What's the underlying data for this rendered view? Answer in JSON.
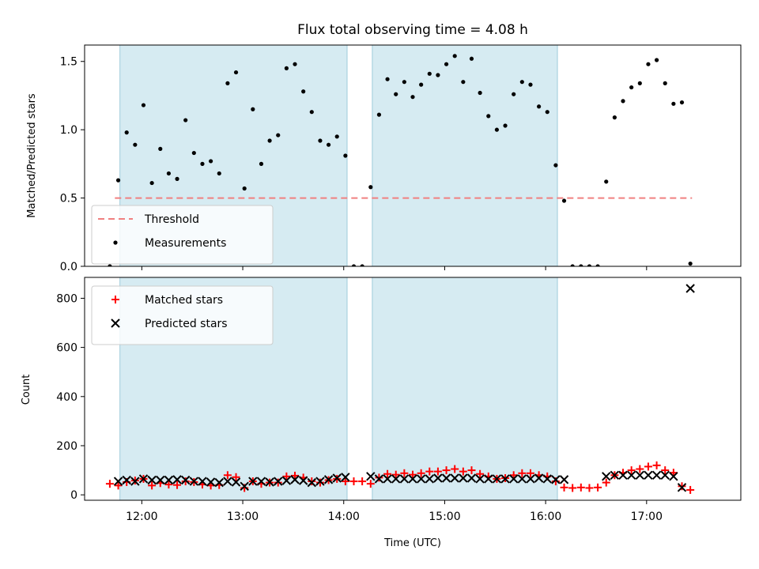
{
  "chart_data": [
    {
      "type": "scatter",
      "title": "Flux total observing time = 4.08 h",
      "ylabel": "Matched/Predicted stars",
      "xlabel": "",
      "xlim": [
        "11:26",
        "17:56"
      ],
      "ylim": [
        0,
        1.62
      ],
      "yticks": [
        0.0,
        0.5,
        1.0,
        1.5
      ],
      "ytick_labels": [
        "0.0",
        "0.5",
        "1.0",
        "1.5"
      ],
      "grid": false,
      "legend_position": "lower-left",
      "shaded_intervals": [
        [
          "11:47",
          "14:02"
        ],
        [
          "14:17",
          "16:07"
        ]
      ],
      "threshold": {
        "name": "Threshold",
        "value": 0.5,
        "x_start": "11:44",
        "x_end": "17:27",
        "color": "#f08080",
        "style": "dashed"
      },
      "series": [
        {
          "name": "Measurements",
          "color": "#000000",
          "marker": "dot",
          "x": [
            "11:41",
            "11:46",
            "11:51",
            "11:56",
            "12:01",
            "12:06",
            "12:11",
            "12:16",
            "12:21",
            "12:26",
            "12:31",
            "12:36",
            "12:41",
            "12:46",
            "12:51",
            "12:56",
            "13:01",
            "13:06",
            "13:11",
            "13:16",
            "13:21",
            "13:26",
            "13:31",
            "13:36",
            "13:41",
            "13:46",
            "13:51",
            "13:56",
            "14:01",
            "14:06",
            "14:11",
            "14:16",
            "14:21",
            "14:26",
            "14:31",
            "14:36",
            "14:41",
            "14:46",
            "14:51",
            "14:56",
            "15:01",
            "15:06",
            "15:11",
            "15:16",
            "15:21",
            "15:26",
            "15:31",
            "15:36",
            "15:41",
            "15:46",
            "15:51",
            "15:56",
            "16:01",
            "16:06",
            "16:11",
            "16:16",
            "16:21",
            "16:26",
            "16:31",
            "16:36",
            "16:41",
            "16:46",
            "16:51",
            "16:56",
            "17:01",
            "17:06",
            "17:11",
            "17:16",
            "17:21",
            "17:26"
          ],
          "y": [
            0.0,
            0.63,
            0.98,
            0.89,
            1.18,
            0.61,
            0.86,
            0.68,
            0.64,
            1.07,
            0.83,
            0.75,
            0.77,
            0.68,
            1.34,
            1.42,
            0.57,
            1.15,
            0.75,
            0.92,
            0.96,
            1.45,
            1.48,
            1.28,
            1.13,
            0.92,
            0.89,
            0.95,
            0.81,
            0.0,
            0.0,
            0.58,
            1.11,
            1.37,
            1.26,
            1.35,
            1.24,
            1.33,
            1.41,
            1.4,
            1.48,
            1.54,
            1.35,
            1.52,
            1.27,
            1.1,
            1.0,
            1.03,
            1.26,
            1.35,
            1.33,
            1.17,
            1.13,
            0.74,
            0.48,
            0.0,
            0.0,
            0.0,
            0.0,
            0.62,
            1.09,
            1.21,
            1.31,
            1.34,
            1.48,
            1.51,
            1.34,
            1.19,
            1.2,
            0.02
          ]
        }
      ]
    },
    {
      "type": "scatter",
      "title": "",
      "ylabel": "Count",
      "xlabel": "Time (UTC)",
      "xlim": [
        "11:26",
        "17:56"
      ],
      "ylim": [
        -22,
        885
      ],
      "yticks": [
        0,
        200,
        400,
        600,
        800
      ],
      "ytick_labels": [
        "0",
        "200",
        "400",
        "600",
        "800"
      ],
      "xtick_labels": [
        "12:00",
        "13:00",
        "14:00",
        "15:00",
        "16:00",
        "17:00"
      ],
      "grid": false,
      "legend_position": "top-left",
      "shaded_intervals": [
        [
          "11:47",
          "14:02"
        ],
        [
          "14:17",
          "16:07"
        ]
      ],
      "series": [
        {
          "name": "Matched stars",
          "color": "#ff0000",
          "marker": "plus",
          "x": [
            "11:41",
            "11:46",
            "11:51",
            "11:56",
            "12:01",
            "12:06",
            "12:11",
            "12:16",
            "12:21",
            "12:26",
            "12:31",
            "12:36",
            "12:41",
            "12:46",
            "12:51",
            "12:56",
            "13:01",
            "13:06",
            "13:11",
            "13:16",
            "13:21",
            "13:26",
            "13:31",
            "13:36",
            "13:41",
            "13:46",
            "13:51",
            "13:56",
            "14:01",
            "14:06",
            "14:11",
            "14:16",
            "14:21",
            "14:26",
            "14:31",
            "14:36",
            "14:41",
            "14:46",
            "14:51",
            "14:56",
            "15:01",
            "15:06",
            "15:11",
            "15:16",
            "15:21",
            "15:26",
            "15:31",
            "15:36",
            "15:41",
            "15:46",
            "15:51",
            "15:56",
            "16:01",
            "16:06",
            "16:11",
            "16:16",
            "16:21",
            "16:26",
            "16:31",
            "16:36",
            "16:41",
            "16:46",
            "16:51",
            "16:56",
            "17:01",
            "17:06",
            "17:11",
            "17:16",
            "17:21",
            "17:26"
          ],
          "y": [
            45,
            38,
            52,
            58,
            65,
            38,
            48,
            42,
            40,
            55,
            52,
            42,
            38,
            40,
            80,
            72,
            28,
            55,
            45,
            50,
            50,
            75,
            78,
            70,
            55,
            50,
            60,
            65,
            55,
            55,
            55,
            45,
            70,
            85,
            82,
            88,
            82,
            88,
            95,
            95,
            100,
            105,
            95,
            100,
            85,
            75,
            65,
            68,
            80,
            88,
            88,
            80,
            75,
            55,
            30,
            28,
            30,
            28,
            30,
            50,
            80,
            90,
            100,
            105,
            115,
            120,
            100,
            90,
            35,
            20
          ]
        },
        {
          "name": "Predicted stars",
          "color": "#000000",
          "marker": "x",
          "x": [
            "11:46",
            "11:51",
            "11:56",
            "12:01",
            "12:06",
            "12:11",
            "12:16",
            "12:21",
            "12:26",
            "12:31",
            "12:36",
            "12:41",
            "12:46",
            "12:51",
            "12:56",
            "13:01",
            "13:06",
            "13:11",
            "13:16",
            "13:21",
            "13:26",
            "13:31",
            "13:36",
            "13:41",
            "13:46",
            "13:51",
            "13:56",
            "14:01",
            "14:16",
            "14:21",
            "14:26",
            "14:31",
            "14:36",
            "14:41",
            "14:46",
            "14:51",
            "14:56",
            "15:01",
            "15:06",
            "15:11",
            "15:16",
            "15:21",
            "15:26",
            "15:31",
            "15:36",
            "15:41",
            "15:46",
            "15:51",
            "15:56",
            "16:01",
            "16:06",
            "16:11",
            "16:36",
            "16:41",
            "16:46",
            "16:51",
            "16:56",
            "17:01",
            "17:06",
            "17:11",
            "17:16",
            "17:21",
            "17:26"
          ],
          "y": [
            55,
            60,
            55,
            65,
            60,
            60,
            60,
            62,
            60,
            55,
            55,
            52,
            50,
            55,
            52,
            35,
            55,
            55,
            52,
            55,
            58,
            62,
            58,
            50,
            55,
            62,
            68,
            72,
            75,
            65,
            65,
            65,
            65,
            65,
            65,
            65,
            68,
            68,
            68,
            68,
            68,
            65,
            65,
            65,
            65,
            65,
            65,
            65,
            68,
            65,
            62,
            62,
            75,
            80,
            80,
            80,
            80,
            80,
            80,
            80,
            75,
            30,
            840
          ]
        }
      ]
    }
  ]
}
